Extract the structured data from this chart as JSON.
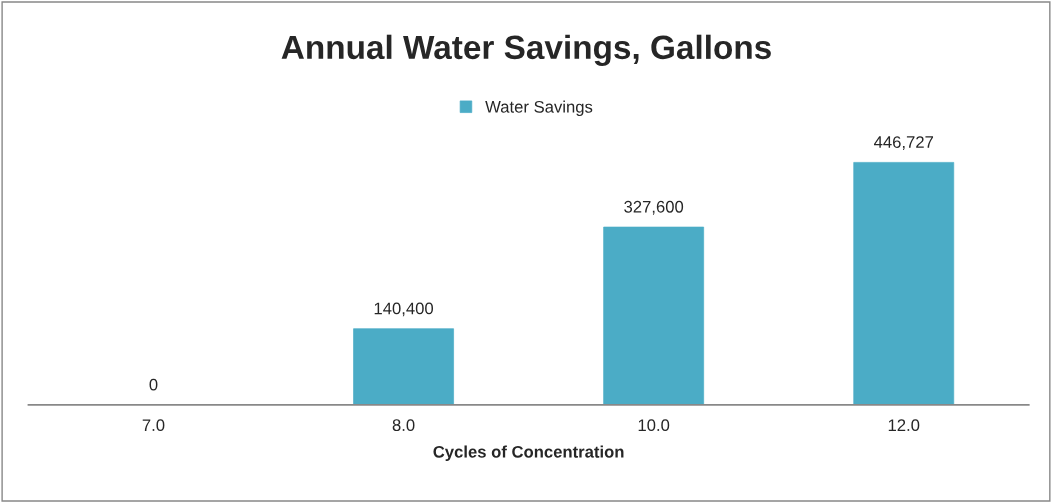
{
  "chart_data": {
    "type": "bar",
    "title": "Annual Water Savings, Gallons",
    "xlabel": "Cycles of Concentration",
    "categories": [
      "7.0",
      "8.0",
      "10.0",
      "12.0"
    ],
    "series": [
      {
        "name": "Water Savings",
        "color": "#4bacc6",
        "values": [
          0,
          140400,
          327600,
          446727
        ],
        "value_labels": [
          "0",
          "140,400",
          "327,600",
          "446,727"
        ]
      }
    ],
    "legend": "top",
    "grid": false
  }
}
